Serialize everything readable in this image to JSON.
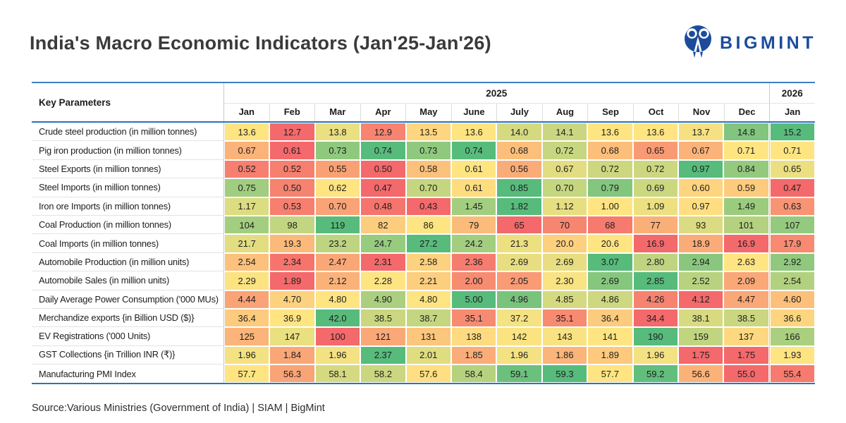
{
  "title": "India's Macro Economic Indicators (Jan'25-Jan'26)",
  "logo": {
    "text": "BIGMINT",
    "color": "#1b4c9c"
  },
  "source": "Source:Various Ministries (Government of India) | SIAM | BigMint",
  "chart_data": {
    "type": "heatmap",
    "title": "India's Macro Economic Indicators (Jan'25-Jan'26)",
    "row_header": "Key Parameters",
    "column_years": [
      {
        "label": "2025",
        "span": 12
      },
      {
        "label": "2026",
        "span": 1
      }
    ],
    "columns": [
      "Jan",
      "Feb",
      "Mar",
      "Apr",
      "May",
      "June",
      "July",
      "Aug",
      "Sep",
      "Oct",
      "Nov",
      "Dec",
      "Jan"
    ],
    "rows": [
      {
        "label": "Crude steel production (in million tonnes)",
        "values": [
          "13.6",
          "12.7",
          "13.8",
          "12.9",
          "13.5",
          "13.6",
          "14.0",
          "14.1",
          "13.6",
          "13.6",
          "13.7",
          "14.8",
          "15.2"
        ]
      },
      {
        "label": "Pig iron production (in million tonnes)",
        "values": [
          "0.67",
          "0.61",
          "0.73",
          "0.74",
          "0.73",
          "0.74",
          "0.68",
          "0.72",
          "0.68",
          "0.65",
          "0.67",
          "0.71",
          "0.71"
        ]
      },
      {
        "label": "Steel Exports (in million tonnes)",
        "values": [
          "0.52",
          "0.52",
          "0.55",
          "0.50",
          "0.58",
          "0.61",
          "0.56",
          "0.67",
          "0.72",
          "0.72",
          "0.97",
          "0.84",
          "0.65"
        ]
      },
      {
        "label": "Steel Imports (in million tonnes)",
        "values": [
          "0.75",
          "0.50",
          "0.62",
          "0.47",
          "0.70",
          "0.61",
          "0.85",
          "0.70",
          "0.79",
          "0.69",
          "0.60",
          "0.59",
          "0.47"
        ]
      },
      {
        "label": "Iron ore Imports (in million tonnes)",
        "values": [
          "1.17",
          "0.53",
          "0.70",
          "0.48",
          "0.43",
          "1.45",
          "1.82",
          "1.12",
          "1.00",
          "1.09",
          "0.97",
          "1.49",
          "0.63"
        ]
      },
      {
        "label": "Coal Production (in million tonnes)",
        "values": [
          "104",
          "98",
          "119",
          "82",
          "86",
          "79",
          "65",
          "70",
          "68",
          "77",
          "93",
          "101",
          "107"
        ]
      },
      {
        "label": "Coal Imports (in million tonnes)",
        "values": [
          "21.7",
          "19.3",
          "23.2",
          "24.7",
          "27.2",
          "24.2",
          "21.3",
          "20.0",
          "20.6",
          "16.9",
          "18.9",
          "16.9",
          "17.9"
        ]
      },
      {
        "label": "Automobile Production (in million units)",
        "values": [
          "2.54",
          "2.34",
          "2.47",
          "2.31",
          "2.58",
          "2.36",
          "2.69",
          "2.69",
          "3.07",
          "2.80",
          "2.94",
          "2.63",
          "2.92"
        ]
      },
      {
        "label": "Automobile Sales (in million units)",
        "values": [
          "2.29",
          "1.89",
          "2.12",
          "2.28",
          "2.21",
          "2.00",
          "2.05",
          "2.30",
          "2.69",
          "2.85",
          "2.52",
          "2.09",
          "2.54"
        ]
      },
      {
        "label": "Daily Average Power Consumption ('000 MUs)",
        "values": [
          "4.44",
          "4.70",
          "4.80",
          "4.90",
          "4.80",
          "5.00",
          "4.96",
          "4.85",
          "4.86",
          "4.26",
          "4.12",
          "4.47",
          "4.60"
        ]
      },
      {
        "label": "Merchandize exports {in Billion USD ($)}",
        "values": [
          "36.4",
          "36.9",
          "42.0",
          "38.5",
          "38.7",
          "35.1",
          "37.2",
          "35.1",
          "36.4",
          "34.4",
          "38.1",
          "38.5",
          "36.6"
        ]
      },
      {
        "label": "EV Registrations ('000 Units)",
        "values": [
          "125",
          "147",
          "100",
          "121",
          "131",
          "138",
          "142",
          "143",
          "141",
          "190",
          "159",
          "137",
          "166"
        ]
      },
      {
        "label": "GST Collections {in Trillion INR (₹)}",
        "values": [
          "1.96",
          "1.84",
          "1.96",
          "2.37",
          "2.01",
          "1.85",
          "1.96",
          "1.86",
          "1.89",
          "1.96",
          "1.75",
          "1.75",
          "1.93"
        ]
      },
      {
        "label": "Manufacturing PMI Index",
        "values": [
          "57.7",
          "56.3",
          "58.1",
          "58.2",
          "57.6",
          "58.4",
          "59.1",
          "59.3",
          "57.7",
          "59.2",
          "56.6",
          "55.0",
          "55.4"
        ]
      }
    ],
    "color_scale": {
      "type": "3-color per row (min to red, median to yellow, max to green)",
      "low": "#f4696b",
      "mid": "#ffe482",
      "high": "#57bb7c"
    },
    "legend_position": "none",
    "grid": "white cell gaps, blue header rules"
  }
}
